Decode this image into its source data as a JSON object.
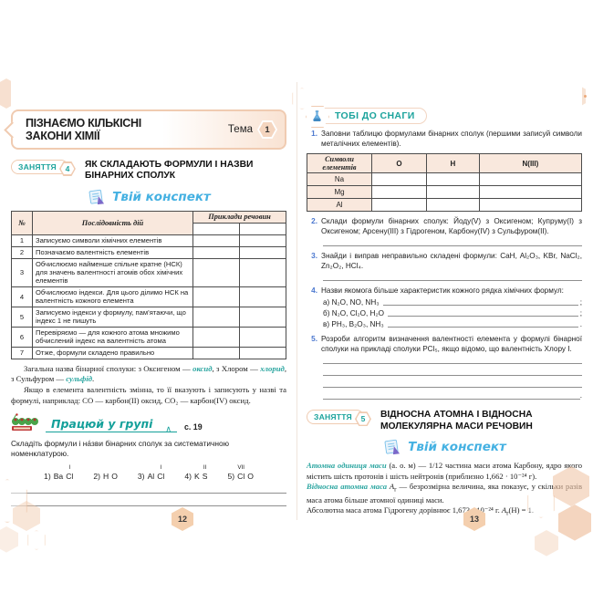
{
  "colors": {
    "peach": "#f0c7a9",
    "peach_border": "#f0cbb1",
    "teal": "#1ba39c",
    "blue_script": "#45b1e2",
    "task_blue": "#4a77cf"
  },
  "left_page": {
    "page_number": "12",
    "theme_box": {
      "title_line1": "ПІЗНАЄМО КІЛЬКІСНІ",
      "title_line2": "ЗАКОНИ ХІМІЇ",
      "tema_label": "Тема",
      "tema_number": "1"
    },
    "lesson": {
      "badge_label": "ЗАНЯТТЯ",
      "badge_number": "4",
      "title_line1": "ЯК СКЛАДАЮТЬ ФОРМУЛИ І НАЗВИ",
      "title_line2": "БІНАРНИХ СПОЛУК"
    },
    "konspekt_label": "Твій конспект",
    "table": {
      "col_num": "№",
      "col_actions": "Послідовність дій",
      "col_examples": "Приклади речовин",
      "rows": [
        {
          "num": "1",
          "text": "Записуємо символи хімічних елементів"
        },
        {
          "num": "2",
          "text": "Позначаємо валентність елементів"
        },
        {
          "num": "3",
          "text": "Обчислюємо найменше спільне кратне (НСК) для значень валентності атомів обох хімічних елементів"
        },
        {
          "num": "4",
          "text": "Обчислюємо індекси. Для цього ділимо НСК на валентність кожного елемента"
        },
        {
          "num": "5",
          "text": "Записуємо індекси у формулу, пам’ятаючи, що індекс 1 не пишуть"
        },
        {
          "num": "6",
          "text": "Перевіряємо — для кожного атома множимо обчислений індекс на валентність атома"
        },
        {
          "num": "7",
          "text": "Отже, формули складено правильно"
        }
      ]
    },
    "note1": {
      "p1": "Загальна назва бінарної сполуки: з Оксигеном — ",
      "t1": "оксид",
      "p2": ", з Хлором — ",
      "t2": "хлорид",
      "p3": ", з Сульфуром — ",
      "t3": "сульфід",
      "p4": "."
    },
    "note2": "Якщо в елемента валентність змінна, то її вказують і записують у назві та формулі, наприклад: CO — карбон(II) оксид, CO₂ — карбон(IV) оксид.",
    "group_work": {
      "label": "Працюй у групі",
      "caret": "∧",
      "page_ref": "с. 19",
      "task": "Складіть формули і на́зви бінарних сполук за систематичною номенклатурою."
    },
    "exercise": [
      {
        "num": "1)",
        "e1": "Ba",
        "v1": "",
        "e2": "Cl",
        "v2": "I"
      },
      {
        "num": "2)",
        "e1": "H",
        "v1": "",
        "e2": "O",
        "v2": ""
      },
      {
        "num": "3)",
        "e1": "Al",
        "v1": "",
        "e2": "Cl",
        "v2": "I"
      },
      {
        "num": "4)",
        "e1": "K",
        "v1": "",
        "e2": "S",
        "v2": "II"
      },
      {
        "num": "5)",
        "e1": "Cl",
        "v1": "VII",
        "e2": "O",
        "v2": ""
      }
    ]
  },
  "right_page": {
    "page_number": "13",
    "snagy_title": "ТОБІ ДО СНАГИ",
    "tasks": {
      "n1": "1.",
      "t1": "Заповни таблицю формулами бінарних сполук (першими записуй символи металічних елементів).",
      "n2": "2.",
      "t2": "Склади формули бінарних сполук: Йоду(V) з Оксигеном; Купруму(I) з Оксигеном; Арсену(III) з Гідрогеном, Карбону(IV) з Сульфуром(II).",
      "n3": "3.",
      "t3": "Знайди і виправ неправильно складені формули: CaH, Al₂O₃, KBr, NaCl₂, Zn₂O₂, HCl₄.",
      "n4": "4.",
      "t4": "Назви якомога більше характеристик кожного рядка хімічних формул:",
      "t4a_label": "а)",
      "t4a": "N₂O, NO, NH₃",
      "t4a_end": ";",
      "t4b_label": "б)",
      "t4b": "N₂O, Cl₂O, H₂O",
      "t4b_end": ";",
      "t4c_label": "в)",
      "t4c": "PH₃, B₂O₃, NH₃",
      "t4c_end": ".",
      "n5": "5.",
      "t5": "Розроби алгоритм визначення валентності елемента у формулі бінарної сполуки на прикладі сполуки PCl₅, якщо відомо, що валентність Хлору I.",
      "t5_end": "."
    },
    "table1": {
      "header": [
        "Символи елементів",
        "O",
        "H",
        "N(III)"
      ],
      "rows": [
        "Na",
        "Mg",
        "Al"
      ]
    },
    "lesson": {
      "badge_label": "ЗАНЯТТЯ",
      "badge_number": "5",
      "title_line1": "ВІДНОСНА АТОМНА І ВІДНОСНА",
      "title_line2": "МОЛЕКУЛЯРНА МАСИ РЕЧОВИН"
    },
    "konspekt_label": "Твій конспект",
    "definitions": {
      "d1_term": "Атомна одиниця маси",
      "d1_text": " (а. о. м) — 1/12 частина маси атома Карбону, ядро якого містить шість протонів і шість нейтронів (приблизно 1,662 · 10⁻²⁴ г).",
      "d2_term": "Відносна атомна маса",
      "d2_var": "A",
      "d2_var_sub": "r",
      "d2_text": " — безрозмірна величина, яка показує, у скільки разів маса атома більше атомної одиниці маси.",
      "d3_p1": "Абсолютна маса атома Гідрогену дорівнює 1,673 · 10⁻²⁴ г. ",
      "d3_var": "A",
      "d3_var_sub": "r",
      "d3_p2": "(H) = 1."
    }
  }
}
